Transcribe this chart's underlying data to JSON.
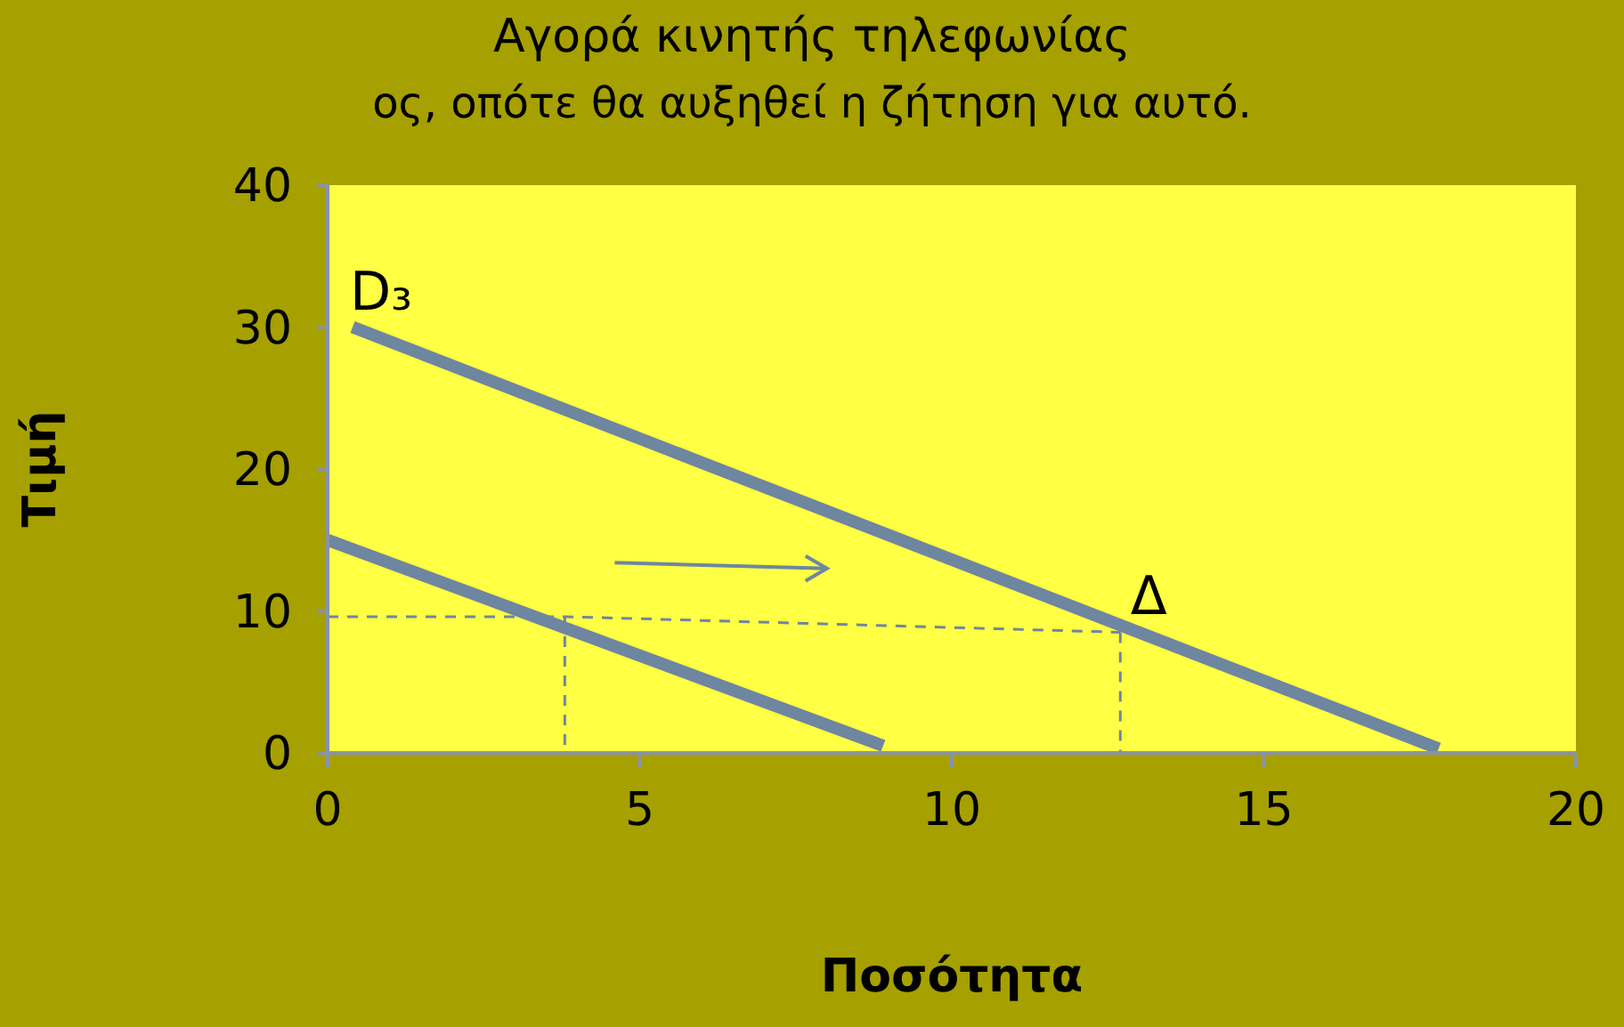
{
  "chart_data": {
    "type": "line",
    "title": "Αγορά κινητής τηλεφωνίας",
    "annotations": [
      "ος, οπότε θα αυξηθεί η ζήτηση για αυτό.",
      {
        "text": "D₃",
        "x": 0.4,
        "y": 30
      },
      {
        "text": "Δ",
        "x": 12.7,
        "y": 8.5
      }
    ],
    "xlabel": "Ποσότητα",
    "ylabel": "Τιμή",
    "xlim": [
      0,
      20
    ],
    "xticks": [
      0,
      5,
      10,
      15,
      20
    ],
    "ylim": [
      0,
      40
    ],
    "yticks": [
      0,
      10,
      20,
      30,
      40
    ],
    "grid": false,
    "legend": false,
    "marker": "none",
    "series": [
      {
        "color": "#6e86a0",
        "line_style": "solid",
        "x": [
          0.4,
          17.8
        ],
        "values": [
          30,
          0.3
        ]
      },
      {
        "color": "#6e86a0",
        "line_style": "solid",
        "x": [
          0,
          8.9
        ],
        "values": [
          15,
          0.5
        ]
      },
      {
        "color": "#6e86a0",
        "line_style": "dashed",
        "x": [
          0,
          3.8,
          12.7
        ],
        "values": [
          9.6,
          9.6,
          8.5
        ]
      },
      {
        "color": "#6e86a0",
        "line_style": "dashed",
        "x": [
          3.8,
          3.8
        ],
        "values": [
          9.6,
          0
        ]
      },
      {
        "color": "#6e86a0",
        "line_style": "dashed",
        "x": [
          12.7,
          12.7
        ],
        "values": [
          8.5,
          0
        ]
      }
    ]
  }
}
